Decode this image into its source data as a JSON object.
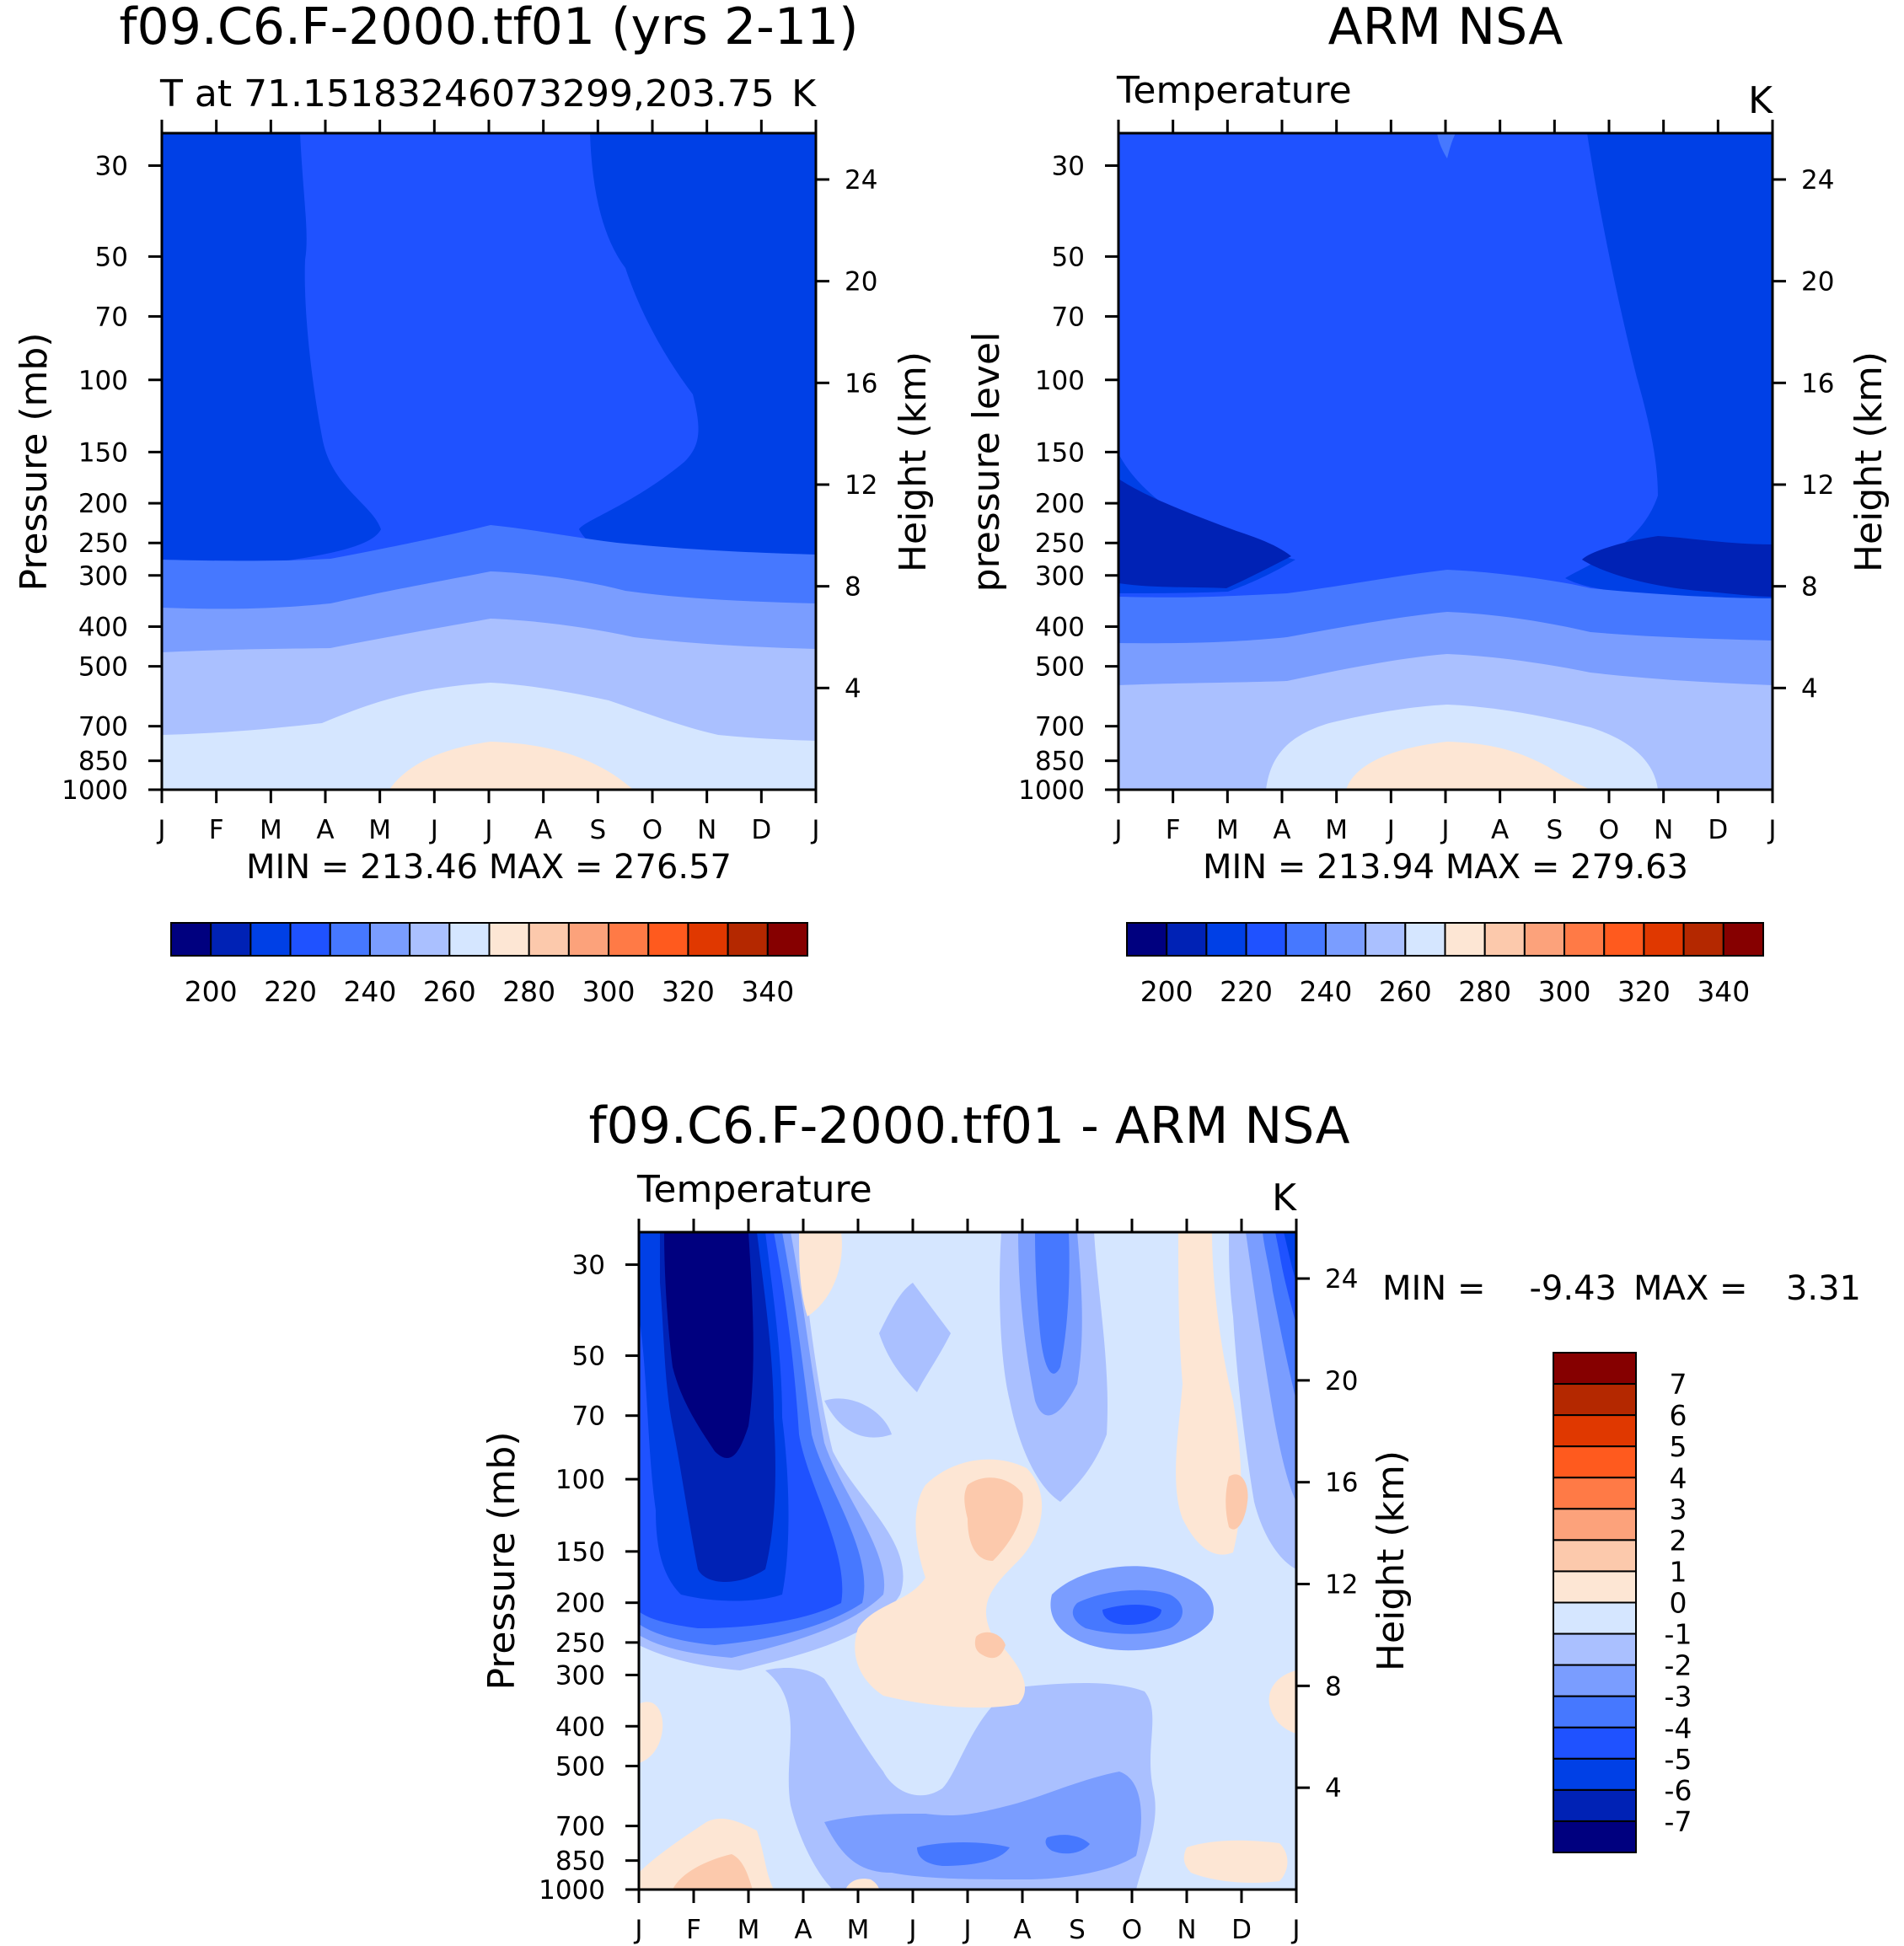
{
  "chart_data": [
    {
      "id": "model",
      "type": "contour",
      "title": "f09.C6.F-2000.tf01 (yrs 2-11)",
      "subtitle_left": "T at 71.15183246073299,203.75",
      "units": "K",
      "ylabel_left": "Pressure (mb)",
      "ylabel_right": "Height (km)",
      "x_ticks": [
        "J",
        "F",
        "M",
        "A",
        "M",
        "J",
        "J",
        "A",
        "S",
        "O",
        "N",
        "D",
        "J"
      ],
      "pressure_ticks": [
        30,
        50,
        70,
        100,
        150,
        200,
        250,
        300,
        400,
        500,
        700,
        850,
        1000
      ],
      "pressure_range": [
        25,
        1000
      ],
      "height_ticks": [
        4,
        8,
        12,
        16,
        20,
        24
      ],
      "stats": "MIN = 213.46 MAX = 276.57",
      "min": 213.46,
      "max": 276.57,
      "levels": [
        200,
        210,
        220,
        230,
        240,
        250,
        260,
        270,
        280,
        290,
        300,
        310,
        320,
        330,
        340
      ],
      "colorbar_labels": [
        "200",
        "220",
        "240",
        "260",
        "280",
        "300",
        "320",
        "340"
      ]
    },
    {
      "id": "obs",
      "type": "contour",
      "title": "ARM NSA",
      "subtitle_left": "Temperature",
      "units": "K",
      "ylabel_left": "pressure level",
      "ylabel_right": "Height (km)",
      "x_ticks": [
        "J",
        "F",
        "M",
        "A",
        "M",
        "J",
        "J",
        "A",
        "S",
        "O",
        "N",
        "D",
        "J"
      ],
      "pressure_ticks": [
        30,
        50,
        70,
        100,
        150,
        200,
        250,
        300,
        400,
        500,
        700,
        850,
        1000
      ],
      "pressure_range": [
        25,
        1000
      ],
      "height_ticks": [
        4,
        8,
        12,
        16,
        20,
        24
      ],
      "stats": "MIN = 213.94 MAX = 279.63",
      "min": 213.94,
      "max": 279.63,
      "levels": [
        200,
        210,
        220,
        230,
        240,
        250,
        260,
        270,
        280,
        290,
        300,
        310,
        320,
        330,
        340
      ],
      "colorbar_labels": [
        "200",
        "220",
        "240",
        "260",
        "280",
        "300",
        "320",
        "340"
      ]
    },
    {
      "id": "diff",
      "type": "contour",
      "title": "f09.C6.F-2000.tf01 - ARM NSA",
      "subtitle_left": "Temperature",
      "units": "K",
      "ylabel_left": "Pressure (mb)",
      "ylabel_right": "Height (km)",
      "x_ticks": [
        "J",
        "F",
        "M",
        "A",
        "M",
        "J",
        "J",
        "A",
        "S",
        "O",
        "N",
        "D",
        "J"
      ],
      "pressure_ticks": [
        30,
        50,
        70,
        100,
        150,
        200,
        250,
        300,
        400,
        500,
        700,
        850,
        1000
      ],
      "pressure_range": [
        25,
        1000
      ],
      "height_ticks": [
        4,
        8,
        12,
        16,
        20,
        24
      ],
      "stats_min_label": "MIN =",
      "stats_min_value": "-9.43",
      "stats_max_label": "MAX =",
      "stats_max_value": "3.31",
      "min": -9.43,
      "max": 3.31,
      "levels": [
        -7,
        -6,
        -5,
        -4,
        -3,
        -2,
        -1,
        0,
        1,
        2,
        3,
        4,
        5,
        6,
        7
      ],
      "colorbar_labels": [
        "7",
        "6",
        "5",
        "4",
        "3",
        "2",
        "1",
        "0",
        "-1",
        "-2",
        "-3",
        "-4",
        "-5",
        "-6",
        "-7"
      ]
    }
  ],
  "colors": {
    "fill_bins": [
      "#00007f",
      "#0022b5",
      "#0040e6",
      "#1f52ff",
      "#4678ff",
      "#7a9dff",
      "#aac0ff",
      "#d5e6ff",
      "#fde6d4",
      "#fcc9ac",
      "#fca27b",
      "#ff7a46",
      "#ff5a1e",
      "#e03800",
      "#b42800",
      "#860000"
    ],
    "axis": "#000000"
  }
}
